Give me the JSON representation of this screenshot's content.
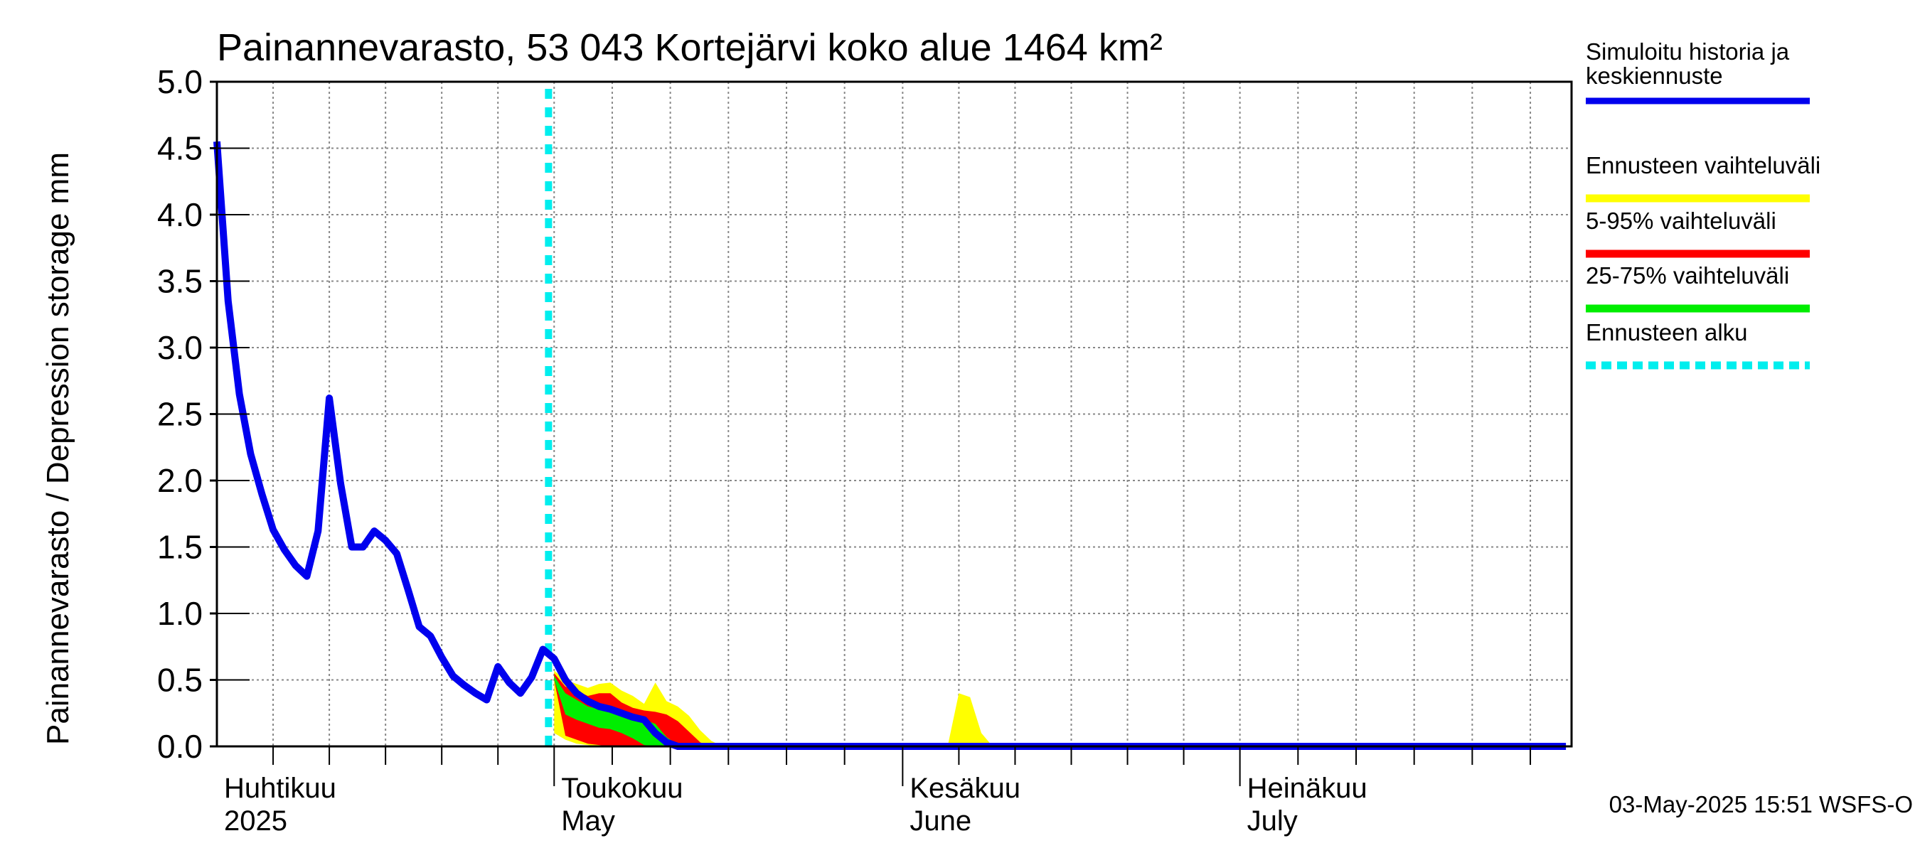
{
  "chart_data": {
    "type": "area",
    "title": "Painannevarasto, 53 043 Kortejärvi koko alue 1464 km²",
    "ylabel": "Painannevarasto / Depression storage    mm",
    "ylim": [
      0,
      5
    ],
    "yticks": [
      "0.0",
      "0.5",
      "1.0",
      "1.5",
      "2.0",
      "2.5",
      "3.0",
      "3.5",
      "4.0",
      "4.5",
      "5.0"
    ],
    "x_start": "2025-04-01",
    "x_end": "2025-07-31",
    "forecast_start_day": 29.5,
    "month_labels": [
      {
        "fi": "Huhtikuu",
        "en": "2025",
        "day": 0
      },
      {
        "fi": "Toukokuu",
        "en": "May",
        "day": 30
      },
      {
        "fi": "Kesäkuu",
        "en": "June",
        "day": 61
      },
      {
        "fi": "Heinäkuu",
        "en": "July",
        "day": 91
      }
    ],
    "series": [
      {
        "name": "Simuloitu historia ja keskiennuste",
        "color": "#0000ee",
        "points": [
          [
            0,
            4.55
          ],
          [
            1,
            3.35
          ],
          [
            2,
            2.65
          ],
          [
            3,
            2.2
          ],
          [
            4,
            1.9
          ],
          [
            5,
            1.63
          ],
          [
            6,
            1.48
          ],
          [
            7,
            1.36
          ],
          [
            8,
            1.28
          ],
          [
            9,
            1.62
          ],
          [
            10,
            2.62
          ],
          [
            11,
            1.98
          ],
          [
            12,
            1.5
          ],
          [
            13,
            1.5
          ],
          [
            14,
            1.62
          ],
          [
            15,
            1.55
          ],
          [
            16,
            1.45
          ],
          [
            17,
            1.18
          ],
          [
            18,
            0.9
          ],
          [
            19,
            0.83
          ],
          [
            20,
            0.67
          ],
          [
            21,
            0.53
          ],
          [
            22,
            0.46
          ],
          [
            23,
            0.4
          ],
          [
            24,
            0.35
          ],
          [
            25,
            0.6
          ],
          [
            26,
            0.48
          ],
          [
            27,
            0.4
          ],
          [
            28,
            0.52
          ],
          [
            29,
            0.73
          ],
          [
            30,
            0.66
          ],
          [
            31,
            0.5
          ],
          [
            32,
            0.4
          ],
          [
            33,
            0.34
          ],
          [
            34,
            0.3
          ],
          [
            35,
            0.28
          ],
          [
            36,
            0.25
          ],
          [
            37,
            0.22
          ],
          [
            38,
            0.2
          ],
          [
            39,
            0.1
          ],
          [
            40,
            0.03
          ],
          [
            41,
            0
          ],
          [
            42,
            0
          ],
          [
            120,
            0
          ]
        ]
      },
      {
        "name": "Ennusteen vaihteluväli",
        "color": "#ffff00",
        "upper": [
          [
            30,
            0.57
          ],
          [
            31,
            0.5
          ],
          [
            32,
            0.47
          ],
          [
            33,
            0.44
          ],
          [
            34,
            0.47
          ],
          [
            35,
            0.48
          ],
          [
            36,
            0.42
          ],
          [
            37,
            0.38
          ],
          [
            38,
            0.32
          ],
          [
            39,
            0.48
          ],
          [
            40,
            0.34
          ],
          [
            41,
            0.3
          ],
          [
            42,
            0.23
          ],
          [
            43,
            0.12
          ],
          [
            44,
            0.04
          ],
          [
            45,
            0
          ],
          [
            65,
            0
          ],
          [
            66,
            0.4
          ],
          [
            67,
            0.37
          ],
          [
            68,
            0.1
          ],
          [
            69,
            0
          ],
          [
            120,
            0
          ]
        ],
        "lower": [
          [
            30,
            0.1
          ],
          [
            31,
            0.05
          ],
          [
            32,
            0.02
          ],
          [
            33,
            0.01
          ],
          [
            34,
            0
          ],
          [
            120,
            0
          ]
        ]
      },
      {
        "name": "5-95% vaihteluväli",
        "color": "#ff0000",
        "upper": [
          [
            30,
            0.55
          ],
          [
            31,
            0.45
          ],
          [
            32,
            0.42
          ],
          [
            33,
            0.38
          ],
          [
            34,
            0.4
          ],
          [
            35,
            0.4
          ],
          [
            36,
            0.33
          ],
          [
            37,
            0.29
          ],
          [
            38,
            0.27
          ],
          [
            39,
            0.26
          ],
          [
            40,
            0.24
          ],
          [
            41,
            0.19
          ],
          [
            42,
            0.11
          ],
          [
            43,
            0.03
          ],
          [
            44,
            0
          ]
        ],
        "lower": [
          [
            30,
            0.5
          ],
          [
            31,
            0.08
          ],
          [
            32,
            0.05
          ],
          [
            33,
            0.02
          ],
          [
            34,
            0.01
          ],
          [
            35,
            0
          ],
          [
            44,
            0
          ]
        ]
      },
      {
        "name": "25-75% vaihteluväli",
        "color": "#00ee00",
        "upper": [
          [
            30,
            0.53
          ],
          [
            31,
            0.4
          ],
          [
            32,
            0.35
          ],
          [
            33,
            0.3
          ],
          [
            34,
            0.28
          ],
          [
            35,
            0.27
          ],
          [
            36,
            0.25
          ],
          [
            37,
            0.23
          ],
          [
            38,
            0.2
          ],
          [
            39,
            0.17
          ],
          [
            40,
            0.07
          ],
          [
            41,
            0.01
          ],
          [
            42,
            0
          ]
        ],
        "lower": [
          [
            30,
            0.5
          ],
          [
            31,
            0.24
          ],
          [
            32,
            0.2
          ],
          [
            33,
            0.17
          ],
          [
            34,
            0.14
          ],
          [
            35,
            0.13
          ],
          [
            36,
            0.1
          ],
          [
            37,
            0.06
          ],
          [
            38,
            0.01
          ],
          [
            39,
            0
          ]
        ]
      }
    ],
    "legend": [
      {
        "label": "Simuloitu historia ja keskiennuste",
        "color": "#0000ee",
        "style": "solid"
      },
      {
        "label": "Ennusteen vaihteluväli",
        "color": "#ffff00",
        "style": "solid"
      },
      {
        "label": "5-95% vaihteluväli",
        "color": "#ff0000",
        "style": "solid"
      },
      {
        "label": "25-75% vaihteluväli",
        "color": "#00ee00",
        "style": "solid"
      },
      {
        "label": "Ennusteen alku",
        "color": "#00eeee",
        "style": "dashed"
      }
    ],
    "footer": "03-May-2025 15:51 WSFS-O"
  }
}
